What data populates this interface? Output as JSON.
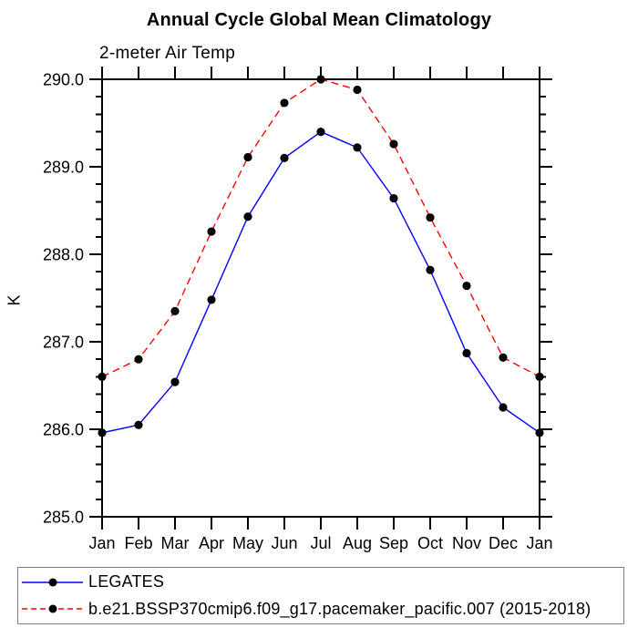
{
  "chart_data": {
    "type": "line",
    "title": "Annual Cycle Global Mean Climatology",
    "subtitle": "2-meter Air Temp",
    "ylabel": "K",
    "xlabel": "",
    "grid": false,
    "legend_position": "bottom",
    "categories": [
      "Jan",
      "Feb",
      "Mar",
      "Apr",
      "May",
      "Jun",
      "Jul",
      "Aug",
      "Sep",
      "Oct",
      "Nov",
      "Dec",
      "Jan"
    ],
    "ylim": [
      285.0,
      290.0
    ],
    "ytick_minor_step": 0.2,
    "yticks": [
      {
        "value": 285.0,
        "label": "285.0"
      },
      {
        "value": 286.0,
        "label": "286.0"
      },
      {
        "value": 287.0,
        "label": "287.0"
      },
      {
        "value": 288.0,
        "label": "288.0"
      },
      {
        "value": 289.0,
        "label": "289.0"
      },
      {
        "value": 290.0,
        "label": "290.0"
      }
    ],
    "series": [
      {
        "name": "LEGATES",
        "line_color": "#0000ff",
        "line_style": "solid",
        "marker": "filled-circle",
        "marker_color": "#000000",
        "values": [
          285.96,
          286.05,
          286.54,
          287.48,
          288.43,
          289.1,
          289.4,
          289.22,
          288.64,
          287.82,
          286.87,
          286.25,
          285.96
        ]
      },
      {
        "name": "b.e21.BSSP370cmip6.f09_g17.pacemaker_pacific.007 (2015-2018)",
        "line_color": "#ff0000",
        "line_style": "dashed",
        "marker": "filled-circle",
        "marker_color": "#000000",
        "values": [
          286.6,
          286.8,
          287.35,
          288.26,
          289.11,
          289.73,
          290.0,
          289.88,
          289.26,
          288.42,
          287.64,
          286.82,
          286.6
        ]
      }
    ],
    "axis_color": "#000000"
  }
}
